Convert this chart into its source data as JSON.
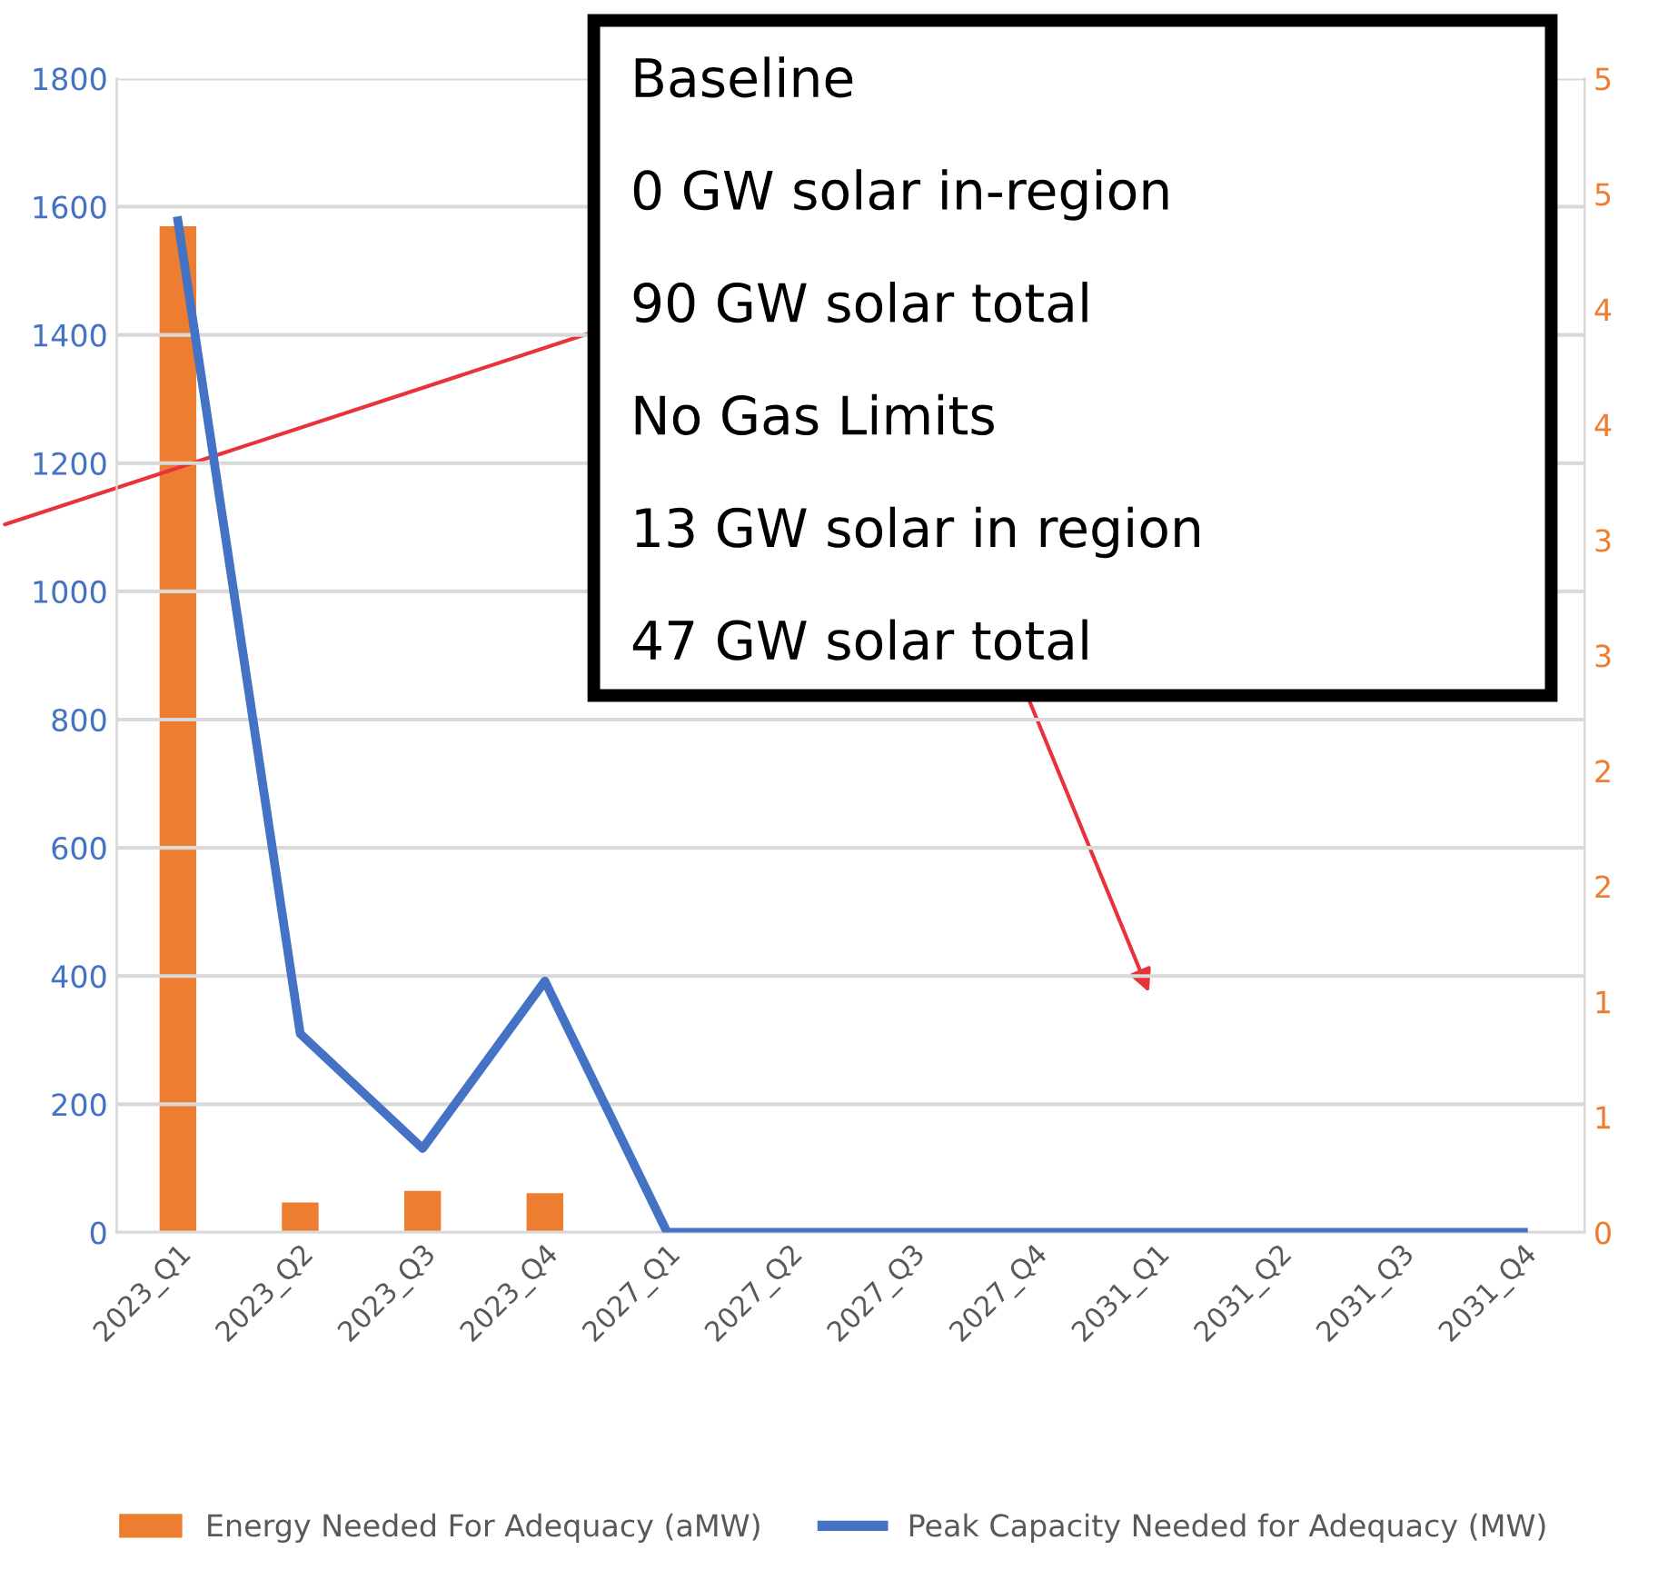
{
  "chart_data": {
    "type": "bar",
    "categories": [
      "2023_Q1",
      "2023_Q2",
      "2023_Q3",
      "2023_Q4",
      "2027_Q1",
      "2027_Q2",
      "2027_Q3",
      "2027_Q4",
      "2031_Q1",
      "2031_Q2",
      "2031_Q3",
      "2031_Q4"
    ],
    "series": [
      {
        "name": "Energy Needed For Adequacy (aMW)",
        "axis": "y2",
        "color": "#ed7d31",
        "values": [
          4.36,
          0.13,
          0.18,
          0.17,
          0,
          0,
          0,
          0,
          0,
          0,
          0,
          0
        ]
      },
      {
        "name": "Peak Capacity Needed for Adequacy (MW)",
        "type": "line",
        "color": "#4472c4",
        "values": [
          1578,
          310,
          131,
          392,
          0,
          0,
          0,
          0,
          0,
          0,
          0,
          0
        ]
      }
    ],
    "ylim": [
      0,
      1800
    ],
    "yticks": [
      0,
      200,
      400,
      600,
      800,
      1000,
      1200,
      1400,
      1600,
      1800
    ],
    "y2lim": [
      0,
      5
    ],
    "y2ticks": [
      0,
      {
        "value": 0.5,
        "label": "1"
      },
      1,
      {
        "value": 1.5,
        "label": "2"
      },
      2,
      {
        "value": 2.5,
        "label": "3"
      },
      3,
      {
        "value": 3.5,
        "label": "4"
      },
      4,
      {
        "value": 4.5,
        "label": "5"
      },
      5
    ],
    "annotations": [
      "Baseline",
      "0 GW solar in-region",
      "90 GW solar total",
      "No Gas Limits",
      "13 GW solar in region",
      "47 GW solar total"
    ],
    "grid": "y",
    "legend": "bottom",
    "line_style": "solid",
    "marker": "none"
  }
}
